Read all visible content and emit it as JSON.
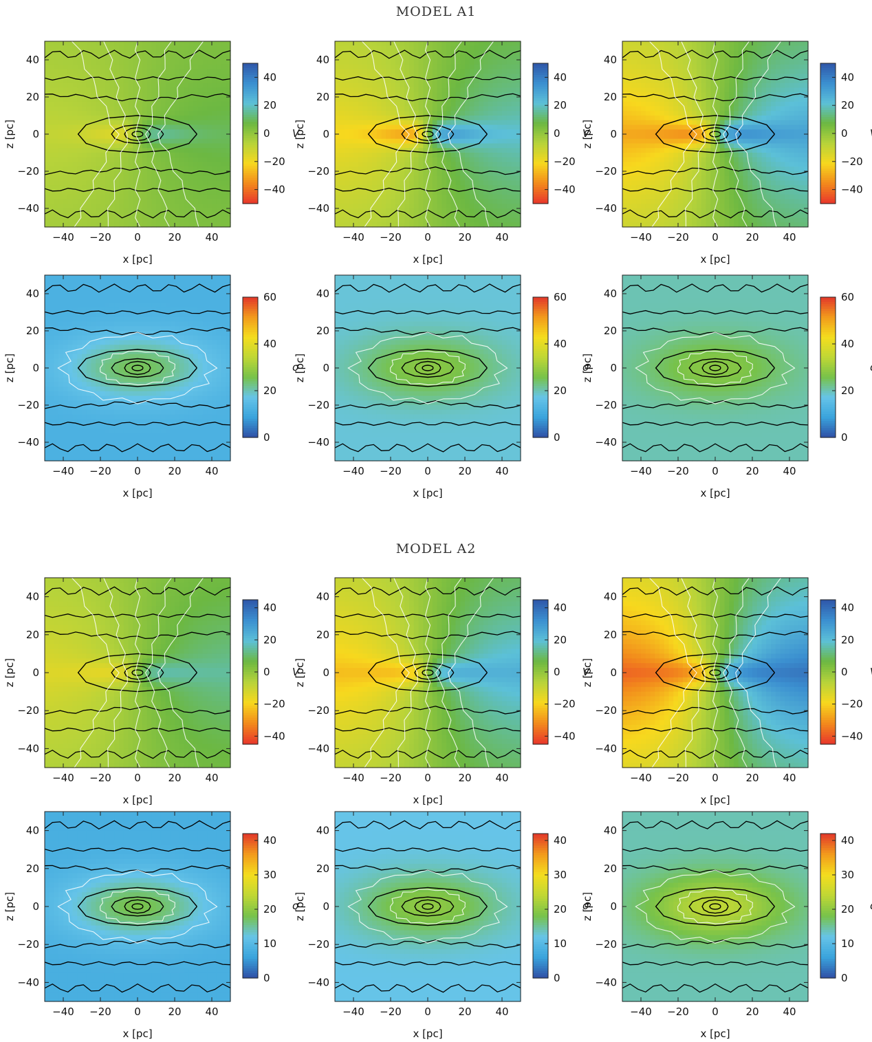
{
  "models": [
    {
      "title": "MODEL A1"
    },
    {
      "title": "MODEL A2"
    }
  ],
  "axes": {
    "xlabel": "x [pc]",
    "ylabel": "z [pc]"
  },
  "colors": {
    "velocity_scale": [
      "#e8362b",
      "#f28a1c",
      "#f7d81e",
      "#b7d33a",
      "#6cb842",
      "#5cc0d8",
      "#3b8fd0",
      "#2f56a8"
    ],
    "dispersion_scale": [
      "#2f4fa6",
      "#3aa4dc",
      "#66c4e8",
      "#77c24a",
      "#c0d735",
      "#f4dd1e",
      "#f29a1c",
      "#e2372a"
    ],
    "contour_black": "#000000",
    "contour_white": "#ffffff"
  },
  "chart_data": [
    {
      "model": "MODEL A1",
      "row": "velocity",
      "type": "heatmap",
      "xlabel": "x [pc]",
      "ylabel": "z [pc]",
      "xlim": [
        -50,
        50
      ],
      "ylim": [
        -50,
        50
      ],
      "xticks": [
        -40,
        -20,
        0,
        20,
        40
      ],
      "yticks": [
        -40,
        -20,
        0,
        20,
        40
      ],
      "colorbar": {
        "label": "V",
        "range": [
          -50,
          50
        ],
        "ticks": [
          -40,
          -20,
          0,
          20,
          40
        ]
      },
      "panels": [
        {
          "rotation_amplitude": 10,
          "peak": 20
        },
        {
          "rotation_amplitude": 22,
          "peak": 40
        },
        {
          "rotation_amplitude": 32,
          "peak": 45
        }
      ]
    },
    {
      "model": "MODEL A1",
      "row": "dispersion",
      "type": "heatmap",
      "xlabel": "x [pc]",
      "ylabel": "z [pc]",
      "xlim": [
        -50,
        50
      ],
      "ylim": [
        -50,
        50
      ],
      "xticks": [
        -40,
        -20,
        0,
        20,
        40
      ],
      "yticks": [
        -40,
        -20,
        0,
        20,
        40
      ],
      "colorbar": {
        "label": "σ",
        "range": [
          0,
          60
        ],
        "ticks": [
          0,
          20,
          40,
          60
        ]
      },
      "panels": [
        {
          "central": 25,
          "outer": 12
        },
        {
          "central": 28,
          "outer": 18
        },
        {
          "central": 28,
          "outer": 20
        }
      ]
    },
    {
      "model": "MODEL A2",
      "row": "velocity",
      "type": "heatmap",
      "xlabel": "x [pc]",
      "ylabel": "z [pc]",
      "xlim": [
        -50,
        50
      ],
      "ylim": [
        -50,
        50
      ],
      "xticks": [
        -40,
        -20,
        0,
        20,
        40
      ],
      "yticks": [
        -40,
        -20,
        0,
        20,
        40
      ],
      "colorbar": {
        "label": "V",
        "range": [
          -45,
          45
        ],
        "ticks": [
          -40,
          -20,
          0,
          20,
          40
        ]
      },
      "panels": [
        {
          "rotation_amplitude": 15,
          "peak": 20
        },
        {
          "rotation_amplitude": 25,
          "peak": 30
        },
        {
          "rotation_amplitude": 40,
          "peak": 40
        }
      ]
    },
    {
      "model": "MODEL A2",
      "row": "dispersion",
      "type": "heatmap",
      "xlabel": "x [pc]",
      "ylabel": "z [pc]",
      "xlim": [
        -50,
        50
      ],
      "ylim": [
        -50,
        50
      ],
      "xticks": [
        -40,
        -20,
        0,
        20,
        40
      ],
      "yticks": [
        -40,
        -20,
        0,
        20,
        40
      ],
      "colorbar": {
        "label": "σ",
        "range": [
          0,
          42
        ],
        "ticks": [
          0,
          10,
          20,
          30,
          40
        ]
      },
      "panels": [
        {
          "central": 18,
          "outer": 8
        },
        {
          "central": 20,
          "outer": 12
        },
        {
          "central": 24,
          "outer": 14
        }
      ]
    }
  ]
}
